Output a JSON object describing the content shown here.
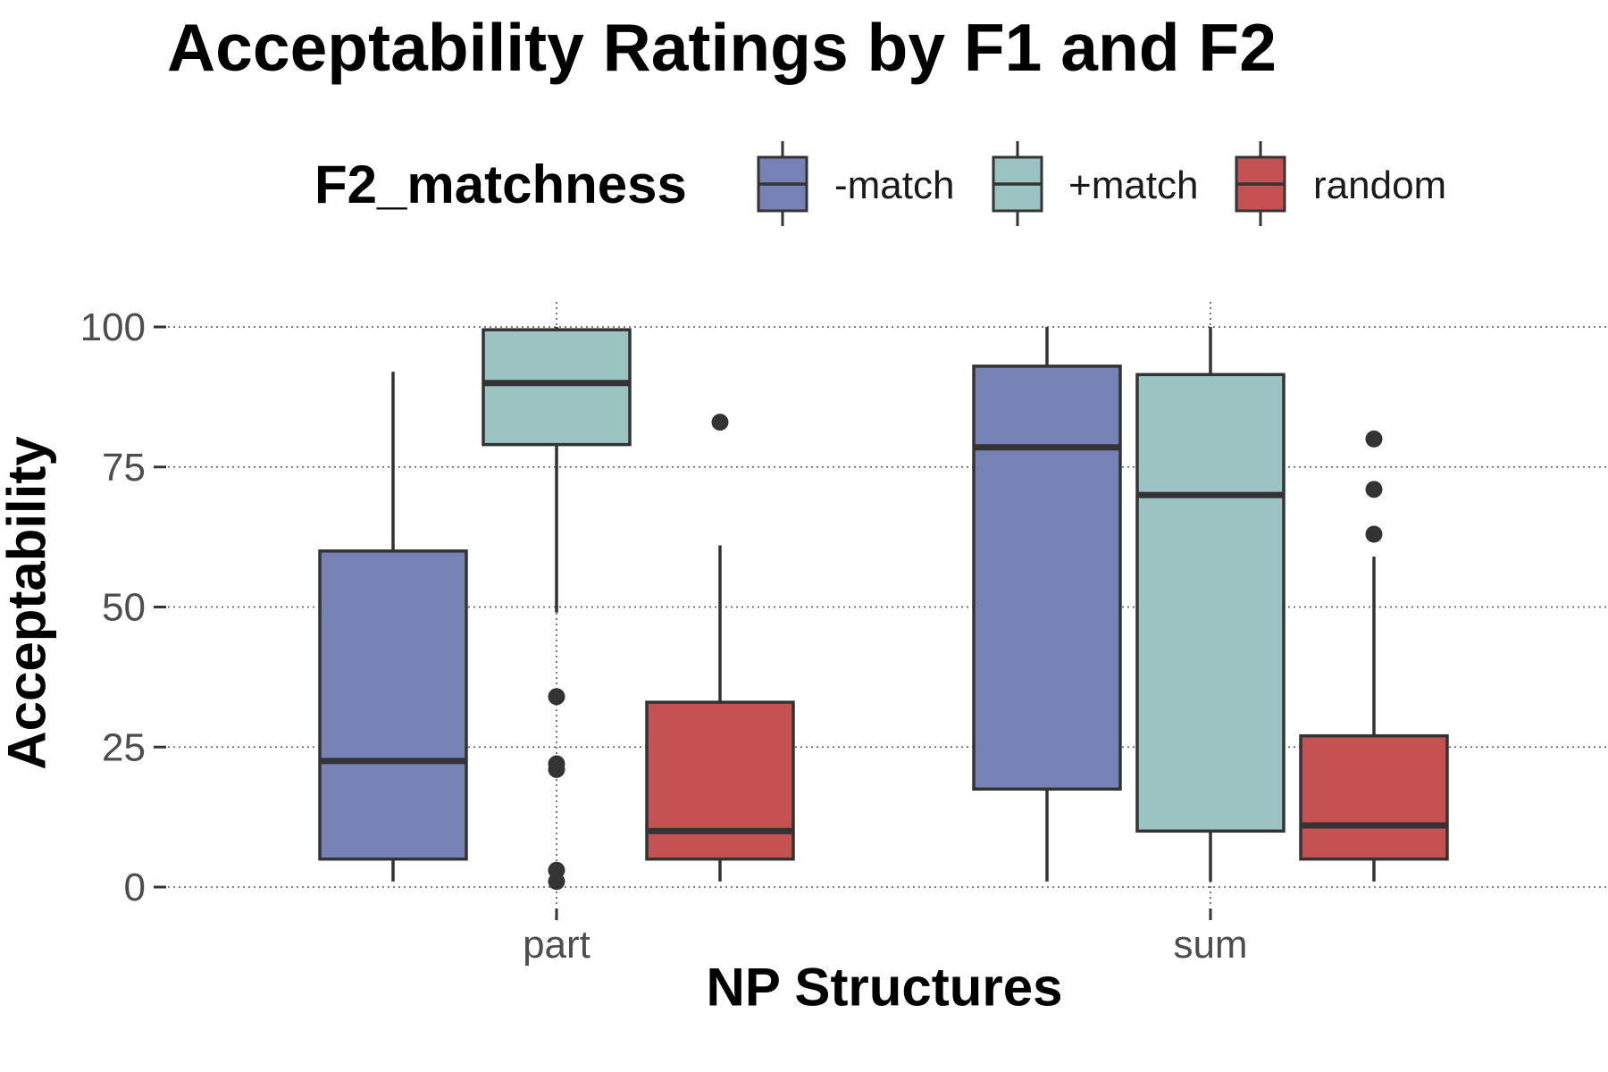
{
  "chart_data": {
    "type": "boxplot",
    "title": "Acceptability Ratings by F1 and F2",
    "xlabel": "NP Structures",
    "ylabel": "Acceptability",
    "categories": [
      "part",
      "sum"
    ],
    "ylim": [
      0,
      100
    ],
    "yticks": [
      0,
      25,
      50,
      75,
      100
    ],
    "grid": true,
    "legend": {
      "title": "F2_matchness",
      "placement": "top",
      "entries": [
        "-match",
        "+match",
        "random"
      ]
    },
    "series": [
      {
        "name": "-match",
        "color": "#7682b3",
        "boxes": [
          {
            "category": "part",
            "min": 1,
            "q1": 5,
            "median": 22.5,
            "q3": 60,
            "max": 92,
            "outliers": []
          },
          {
            "category": "sum",
            "min": 1,
            "q1": 17.5,
            "median": 78.5,
            "q3": 93,
            "max": 100,
            "outliers": []
          }
        ]
      },
      {
        "name": "+match",
        "color": "#9ac3c2",
        "boxes": [
          {
            "category": "part",
            "min": 49,
            "q1": 79,
            "median": 90,
            "q3": 99.5,
            "max": 100,
            "outliers": [
              34,
              22,
              21,
              3,
              1
            ]
          },
          {
            "category": "sum",
            "min": 1,
            "q1": 10,
            "median": 70,
            "q3": 91.5,
            "max": 100,
            "outliers": []
          }
        ]
      },
      {
        "name": "random",
        "color": "#c45252",
        "boxes": [
          {
            "category": "part",
            "min": 1,
            "q1": 5,
            "median": 10,
            "q3": 33,
            "max": 61,
            "outliers": [
              83
            ]
          },
          {
            "category": "sum",
            "min": 1,
            "q1": 5,
            "median": 11,
            "q3": 27,
            "max": 59,
            "outliers": [
              80,
              71,
              63
            ]
          }
        ]
      }
    ]
  }
}
